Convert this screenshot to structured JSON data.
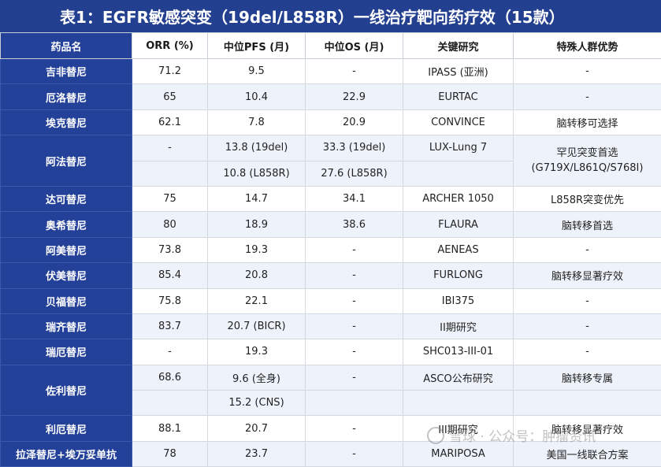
{
  "title": "表1：EGFR敏感突变（19del/L858R）一线治疗靶向药疗效（15款）",
  "columns": [
    "药品名",
    "ORR (%)",
    "中位PFS (月)",
    "中位OS (月)",
    "关键研究",
    "特殊人群优势"
  ],
  "rows": [
    {
      "drug": "吉非替尼",
      "orr": "71.2",
      "pfs": "9.5",
      "os": "-",
      "study": "IPASS (亚洲)",
      "adv": "-"
    },
    {
      "drug": "厄洛替尼",
      "orr": "65",
      "pfs": "10.4",
      "os": "22.9",
      "study": "EURTAC",
      "adv": "-"
    },
    {
      "drug": "埃克替尼",
      "orr": "62.1",
      "pfs": "7.8",
      "os": "20.9",
      "study": "CONVINCE",
      "adv": "脑转移可选择"
    },
    {
      "drug": "阿法替尼",
      "orr": "-",
      "pfs": "13.8 (19del)",
      "os": "33.3 (19del)",
      "study": "LUX-Lung 7",
      "adv": "罕见突变首选 (G719X/L861Q/S768I)",
      "pfs2": "10.8 (L858R)",
      "os2": "27.6 (L858R)"
    },
    {
      "drug": "达可替尼",
      "orr": "75",
      "pfs": "14.7",
      "os": "34.1",
      "study": "ARCHER 1050",
      "adv": "L858R突变优先"
    },
    {
      "drug": "奥希替尼",
      "orr": "80",
      "pfs": "18.9",
      "os": "38.6",
      "study": "FLAURA",
      "adv": "脑转移首选"
    },
    {
      "drug": "阿美替尼",
      "orr": "73.8",
      "pfs": "19.3",
      "os": "-",
      "study": "AENEAS",
      "adv": "-"
    },
    {
      "drug": "伏美替尼",
      "orr": "85.4",
      "pfs": "20.8",
      "os": "-",
      "study": "FURLONG",
      "adv": "脑转移显著疗效"
    },
    {
      "drug": "贝福替尼",
      "orr": "75.8",
      "pfs": "22.1",
      "os": "-",
      "study": "IBI375",
      "adv": "-"
    },
    {
      "drug": "瑞齐替尼",
      "orr": "83.7",
      "pfs": "20.7 (BICR)",
      "os": "-",
      "study": "II期研究",
      "adv": "-"
    },
    {
      "drug": "瑞厄替尼",
      "orr": "-",
      "pfs": "19.3",
      "os": "-",
      "study": "SHC013-III-01",
      "adv": "-"
    },
    {
      "drug": "佐利替尼",
      "orr": "68.6",
      "pfs": "9.6 (全身)",
      "os": "-",
      "study": "ASCO公布研究",
      "adv": "脑转移专属",
      "pfs2": "15.2 (CNS)"
    },
    {
      "drug": "利厄替尼",
      "orr": "88.1",
      "pfs": "20.7",
      "os": "-",
      "study": "III期研究",
      "adv": "脑转移显著疗效"
    },
    {
      "drug": "拉泽替尼+埃万妥单抗",
      "orr": "78",
      "pfs": "23.7",
      "os": "-",
      "study": "MARIPOSA",
      "adv": "美国一线联合方案"
    }
  ],
  "watermark": "雪球 · 公众号：肿瘤资讯"
}
